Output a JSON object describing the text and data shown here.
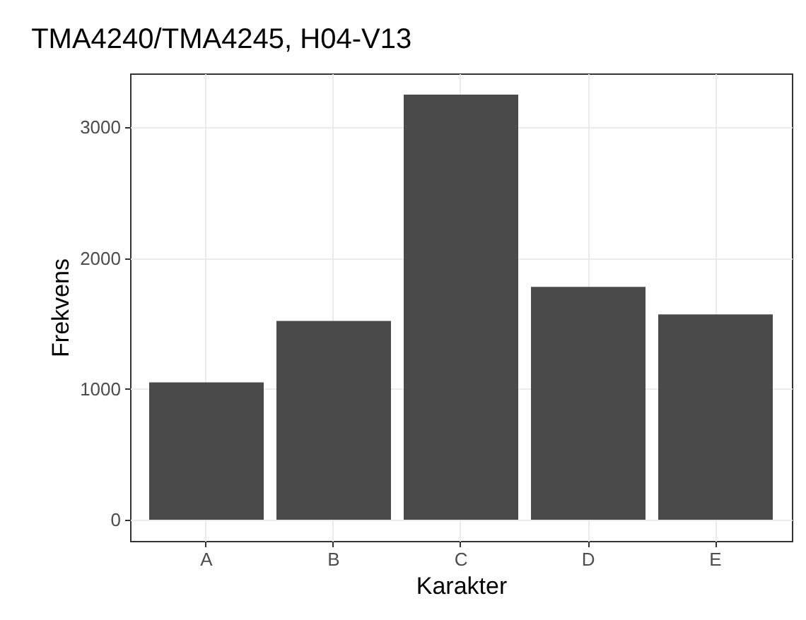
{
  "chart_data": {
    "type": "bar",
    "title": "TMA4240/TMA4245, H04-V13",
    "xlabel": "Karakter",
    "ylabel": "Frekvens",
    "categories": [
      "A",
      "B",
      "C",
      "D",
      "E"
    ],
    "values": [
      1050,
      1520,
      3250,
      1780,
      1570
    ],
    "color": "#4a4a4a",
    "ylim": [
      -162,
      3412
    ],
    "yticks": [
      0,
      1000,
      2000,
      3000
    ],
    "grid": true
  }
}
